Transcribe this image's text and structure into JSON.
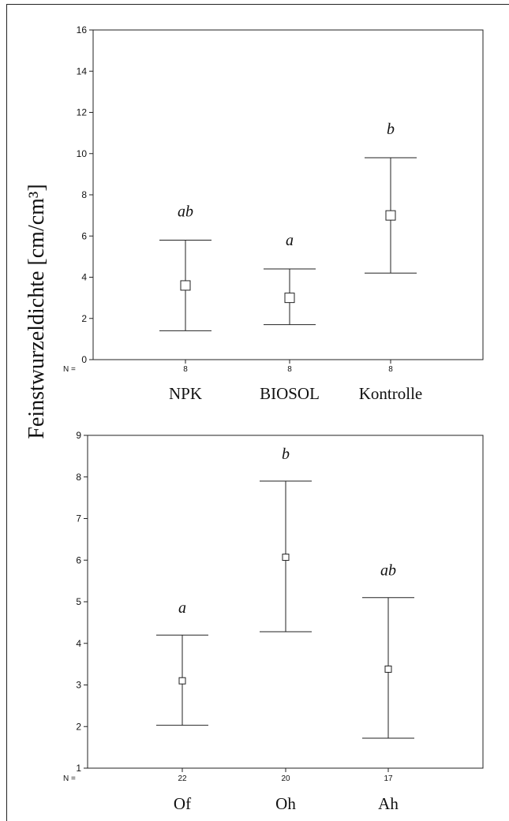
{
  "ylabel": "Feinstwurzeldichte [cm/cm³]",
  "n_prefix": "N =",
  "chart_data": [
    {
      "type": "errorbar",
      "ylim": [
        0,
        16
      ],
      "yticks": [
        0,
        2,
        4,
        6,
        8,
        10,
        12,
        14,
        16
      ],
      "categories": [
        "NPK",
        "BIOSOL",
        "Kontrolle"
      ],
      "n": [
        "8",
        "8",
        "8"
      ],
      "mean": [
        3.6,
        3.0,
        7.0
      ],
      "lower": [
        1.4,
        1.7,
        4.2
      ],
      "upper": [
        5.8,
        4.4,
        9.8
      ],
      "significance": [
        "ab",
        "a",
        "b"
      ]
    },
    {
      "type": "errorbar",
      "ylim": [
        1,
        9
      ],
      "yticks": [
        1,
        2,
        3,
        4,
        5,
        6,
        7,
        8,
        9
      ],
      "categories": [
        "Of",
        "Oh",
        "Ah"
      ],
      "n": [
        "22",
        "20",
        "17"
      ],
      "mean": [
        3.1,
        6.07,
        3.38
      ],
      "lower": [
        2.03,
        4.28,
        1.72
      ],
      "upper": [
        4.2,
        7.9,
        5.1
      ],
      "significance": [
        "a",
        "b",
        "ab"
      ]
    }
  ]
}
